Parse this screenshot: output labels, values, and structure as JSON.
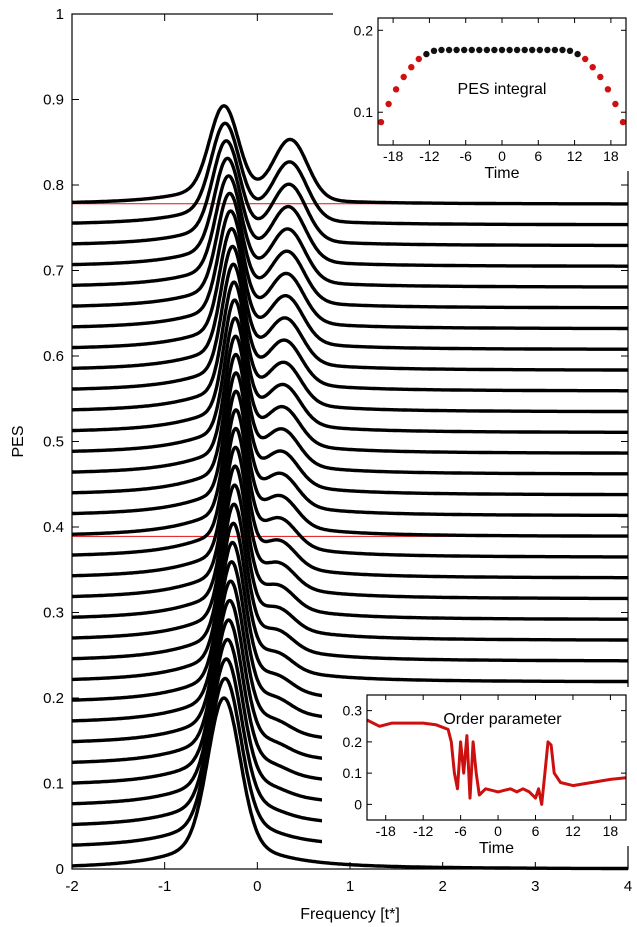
{
  "chart_data": [
    {
      "type": "line",
      "title": "",
      "xlabel": "Frequency [t*]",
      "ylabel": "PES",
      "xlim": [
        -2,
        4
      ],
      "ylim": [
        0,
        1
      ],
      "x_ticks": [
        "-2",
        "-1",
        "0",
        "1",
        "2",
        "3",
        "4"
      ],
      "y_ticks": [
        "0",
        "0.1",
        "0.2",
        "0.3",
        "0.4",
        "0.5",
        "0.6",
        "0.7",
        "0.8",
        "0.9",
        "1"
      ],
      "grid": false,
      "curve_count": 33,
      "offset_step": 0.0243,
      "reference_lines": [
        {
          "y": 0.0,
          "color": "#e01010"
        },
        {
          "y": 0.389,
          "color": "#e01010"
        },
        {
          "y": 0.778,
          "color": "#e01010"
        }
      ],
      "series": [
        {
          "index": 0,
          "baseline": 0.0,
          "main_peak_x": -0.36,
          "main_peak_y": 0.2
        },
        {
          "index": 16,
          "baseline": 0.389,
          "main_peak_x": -0.3,
          "main_peak_y": 0.545,
          "second_peak_x": 0.25,
          "second_peak_y": 0.48
        },
        {
          "index": 32,
          "baseline": 0.778,
          "main_peak_x": -0.36,
          "main_peak_y": 0.907,
          "second_peak_x": 0.34,
          "second_peak_y": 0.843
        }
      ]
    },
    {
      "type": "scatter",
      "label": "PES integral",
      "xlabel": "Time",
      "ylabel": "",
      "xlim": [
        -20.5,
        20.5
      ],
      "ylim": [
        0.06,
        0.215
      ],
      "x_ticks": [
        "-18",
        "-12",
        "-6",
        "0",
        "6",
        "12",
        "18"
      ],
      "y_ticks": [
        "0.1",
        "0.2"
      ],
      "x": [
        -20,
        -18.75,
        -17.5,
        -16.25,
        -15,
        -13.75,
        -12.5,
        -11.25,
        -10,
        -8.75,
        -7.5,
        -6.25,
        -5,
        -3.75,
        -2.5,
        -1.25,
        0,
        1.25,
        2.5,
        3.75,
        5,
        6.25,
        7.5,
        8.75,
        10,
        11.25,
        12.5,
        13.75,
        15,
        16.25,
        17.5,
        18.75,
        20
      ],
      "y": [
        0.088,
        0.11,
        0.128,
        0.143,
        0.155,
        0.165,
        0.171,
        0.175,
        0.176,
        0.176,
        0.176,
        0.176,
        0.176,
        0.176,
        0.176,
        0.176,
        0.176,
        0.176,
        0.176,
        0.176,
        0.176,
        0.176,
        0.176,
        0.176,
        0.176,
        0.175,
        0.171,
        0.165,
        0.155,
        0.143,
        0.128,
        0.11,
        0.088
      ],
      "point_colors": [
        "#d01010",
        "#d01010",
        "#d01010",
        "#d01010",
        "#d01010",
        "#d01010",
        "#111111",
        "#111111",
        "#111111",
        "#111111",
        "#111111",
        "#111111",
        "#111111",
        "#111111",
        "#111111",
        "#111111",
        "#111111",
        "#111111",
        "#111111",
        "#111111",
        "#111111",
        "#111111",
        "#111111",
        "#111111",
        "#111111",
        "#111111",
        "#111111",
        "#d01010",
        "#d01010",
        "#d01010",
        "#d01010",
        "#d01010",
        "#d01010"
      ]
    },
    {
      "type": "line",
      "label": "Order parameter",
      "xlabel": "Time",
      "ylabel": "",
      "xlim": [
        -21,
        20.5
      ],
      "ylim": [
        -0.05,
        0.35
      ],
      "x_ticks": [
        "-18",
        "-12",
        "-6",
        "0",
        "6",
        "12",
        "18"
      ],
      "y_ticks": [
        "0",
        "0.1",
        "0.2",
        "0.3"
      ],
      "color": "#cc1010",
      "x": [
        -21,
        -19,
        -17,
        -14,
        -12,
        -10,
        -8,
        -7.5,
        -7,
        -6.5,
        -6,
        -5.5,
        -5,
        -4.5,
        -4,
        -3.5,
        -3,
        -2,
        -1,
        0,
        1,
        2,
        3,
        4,
        5,
        6,
        6.5,
        7,
        7.5,
        8,
        8.5,
        9,
        10,
        12,
        15,
        18,
        20.5
      ],
      "y": [
        0.27,
        0.25,
        0.26,
        0.26,
        0.26,
        0.255,
        0.24,
        0.2,
        0.1,
        0.05,
        0.2,
        0.1,
        0.22,
        0.02,
        0.2,
        0.1,
        0.03,
        0.05,
        0.045,
        0.04,
        0.045,
        0.05,
        0.04,
        0.05,
        0.04,
        0.02,
        0.05,
        0.0,
        0.1,
        0.2,
        0.19,
        0.1,
        0.07,
        0.06,
        0.07,
        0.08,
        0.085
      ]
    }
  ]
}
